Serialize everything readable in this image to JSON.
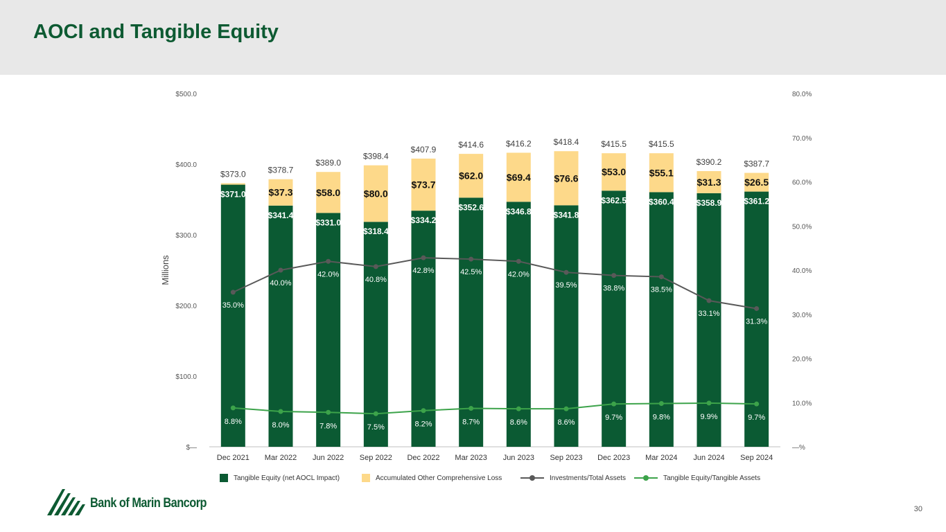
{
  "page": {
    "title": "AOCI and Tangible Equity",
    "page_number": "30",
    "logo_text": "Bank of Marin Bancorp",
    "colors": {
      "header_bg": "#e8e8e8",
      "title": "#0d5a32",
      "tangible_equity": "#0b5a33",
      "aocl": "#fdd98a",
      "investments_line": "#595959",
      "te_ratio_line": "#3ca34a"
    }
  },
  "legend": {
    "tangible_equity": "Tangible Equity (net AOCL Impact)",
    "aocl": "Accumulated Other Comprehensive Loss",
    "investments": "Investments/Total Assets",
    "te_ratio": "Tangible Equity/Tangible Assets"
  },
  "chart_data": {
    "type": "bar",
    "stacked": true,
    "ylabel": "Millions",
    "ylim": [
      0,
      500
    ],
    "y2lim": [
      0,
      80
    ],
    "y_ticks": [
      "$—",
      "$100.0",
      "$200.0",
      "$300.0",
      "$400.0",
      "$500.0"
    ],
    "y2_ticks": [
      "—%",
      "10.0%",
      "20.0%",
      "30.0%",
      "40.0%",
      "50.0%",
      "60.0%",
      "70.0%",
      "80.0%"
    ],
    "categories": [
      "Dec 2021",
      "Mar 2022",
      "Jun 2022",
      "Sep 2022",
      "Dec 2022",
      "Mar 2023",
      "Jun 2023",
      "Sep 2023",
      "Dec 2023",
      "Mar 2024",
      "Jun 2024",
      "Sep 2024"
    ],
    "totals": [
      373.0,
      378.7,
      389.0,
      398.4,
      407.9,
      414.6,
      416.2,
      418.4,
      415.5,
      415.5,
      390.2,
      387.7
    ],
    "total_labels": [
      "$373.0",
      "$378.7",
      "$389.0",
      "$398.4",
      "$407.9",
      "$414.6",
      "$416.2",
      "$418.4",
      "$415.5",
      "$415.5",
      "$390.2",
      "$387.7"
    ],
    "series": [
      {
        "name": "Tangible Equity (net AOCL Impact)",
        "type": "bar",
        "values": [
          371.0,
          341.4,
          331.0,
          318.4,
          334.2,
          352.6,
          346.8,
          341.8,
          362.5,
          360.4,
          358.9,
          361.2
        ],
        "labels": [
          "$371.0",
          "$341.4",
          "$331.0",
          "$318.4",
          "$334.2",
          "$352.6",
          "$346.8",
          "$341.8",
          "$362.5",
          "$360.4",
          "$358.9",
          "$361.2"
        ]
      },
      {
        "name": "Accumulated Other Comprehensive Loss",
        "type": "bar",
        "values": [
          2.0,
          37.3,
          58.0,
          80.0,
          73.7,
          62.0,
          69.4,
          76.6,
          53.0,
          55.1,
          31.3,
          26.5
        ],
        "labels": [
          "",
          "$37.3",
          "$58.0",
          "$80.0",
          "$73.7",
          "$62.0",
          "$69.4",
          "$76.6",
          "$53.0",
          "$55.1",
          "$31.3",
          "$26.5"
        ]
      },
      {
        "name": "Investments/Total Assets",
        "type": "line",
        "axis": "right",
        "values": [
          35.0,
          40.0,
          42.0,
          40.8,
          42.8,
          42.5,
          42.0,
          39.5,
          38.8,
          38.5,
          33.1,
          31.3
        ],
        "labels": [
          "35.0%",
          "40.0%",
          "42.0%",
          "40.8%",
          "42.8%",
          "42.5%",
          "42.0%",
          "39.5%",
          "38.8%",
          "38.5%",
          "33.1%",
          "31.3%"
        ]
      },
      {
        "name": "Tangible Equity/Tangible Assets",
        "type": "line",
        "axis": "right",
        "values": [
          8.8,
          8.0,
          7.8,
          7.5,
          8.2,
          8.7,
          8.6,
          8.6,
          9.7,
          9.8,
          9.9,
          9.7
        ],
        "labels": [
          "8.8%",
          "8.0%",
          "7.8%",
          "7.5%",
          "8.2%",
          "8.7%",
          "8.6%",
          "8.6%",
          "9.7%",
          "9.8%",
          "9.9%",
          "9.7%"
        ]
      }
    ],
    "legend_position": "bottom",
    "grid": false
  }
}
